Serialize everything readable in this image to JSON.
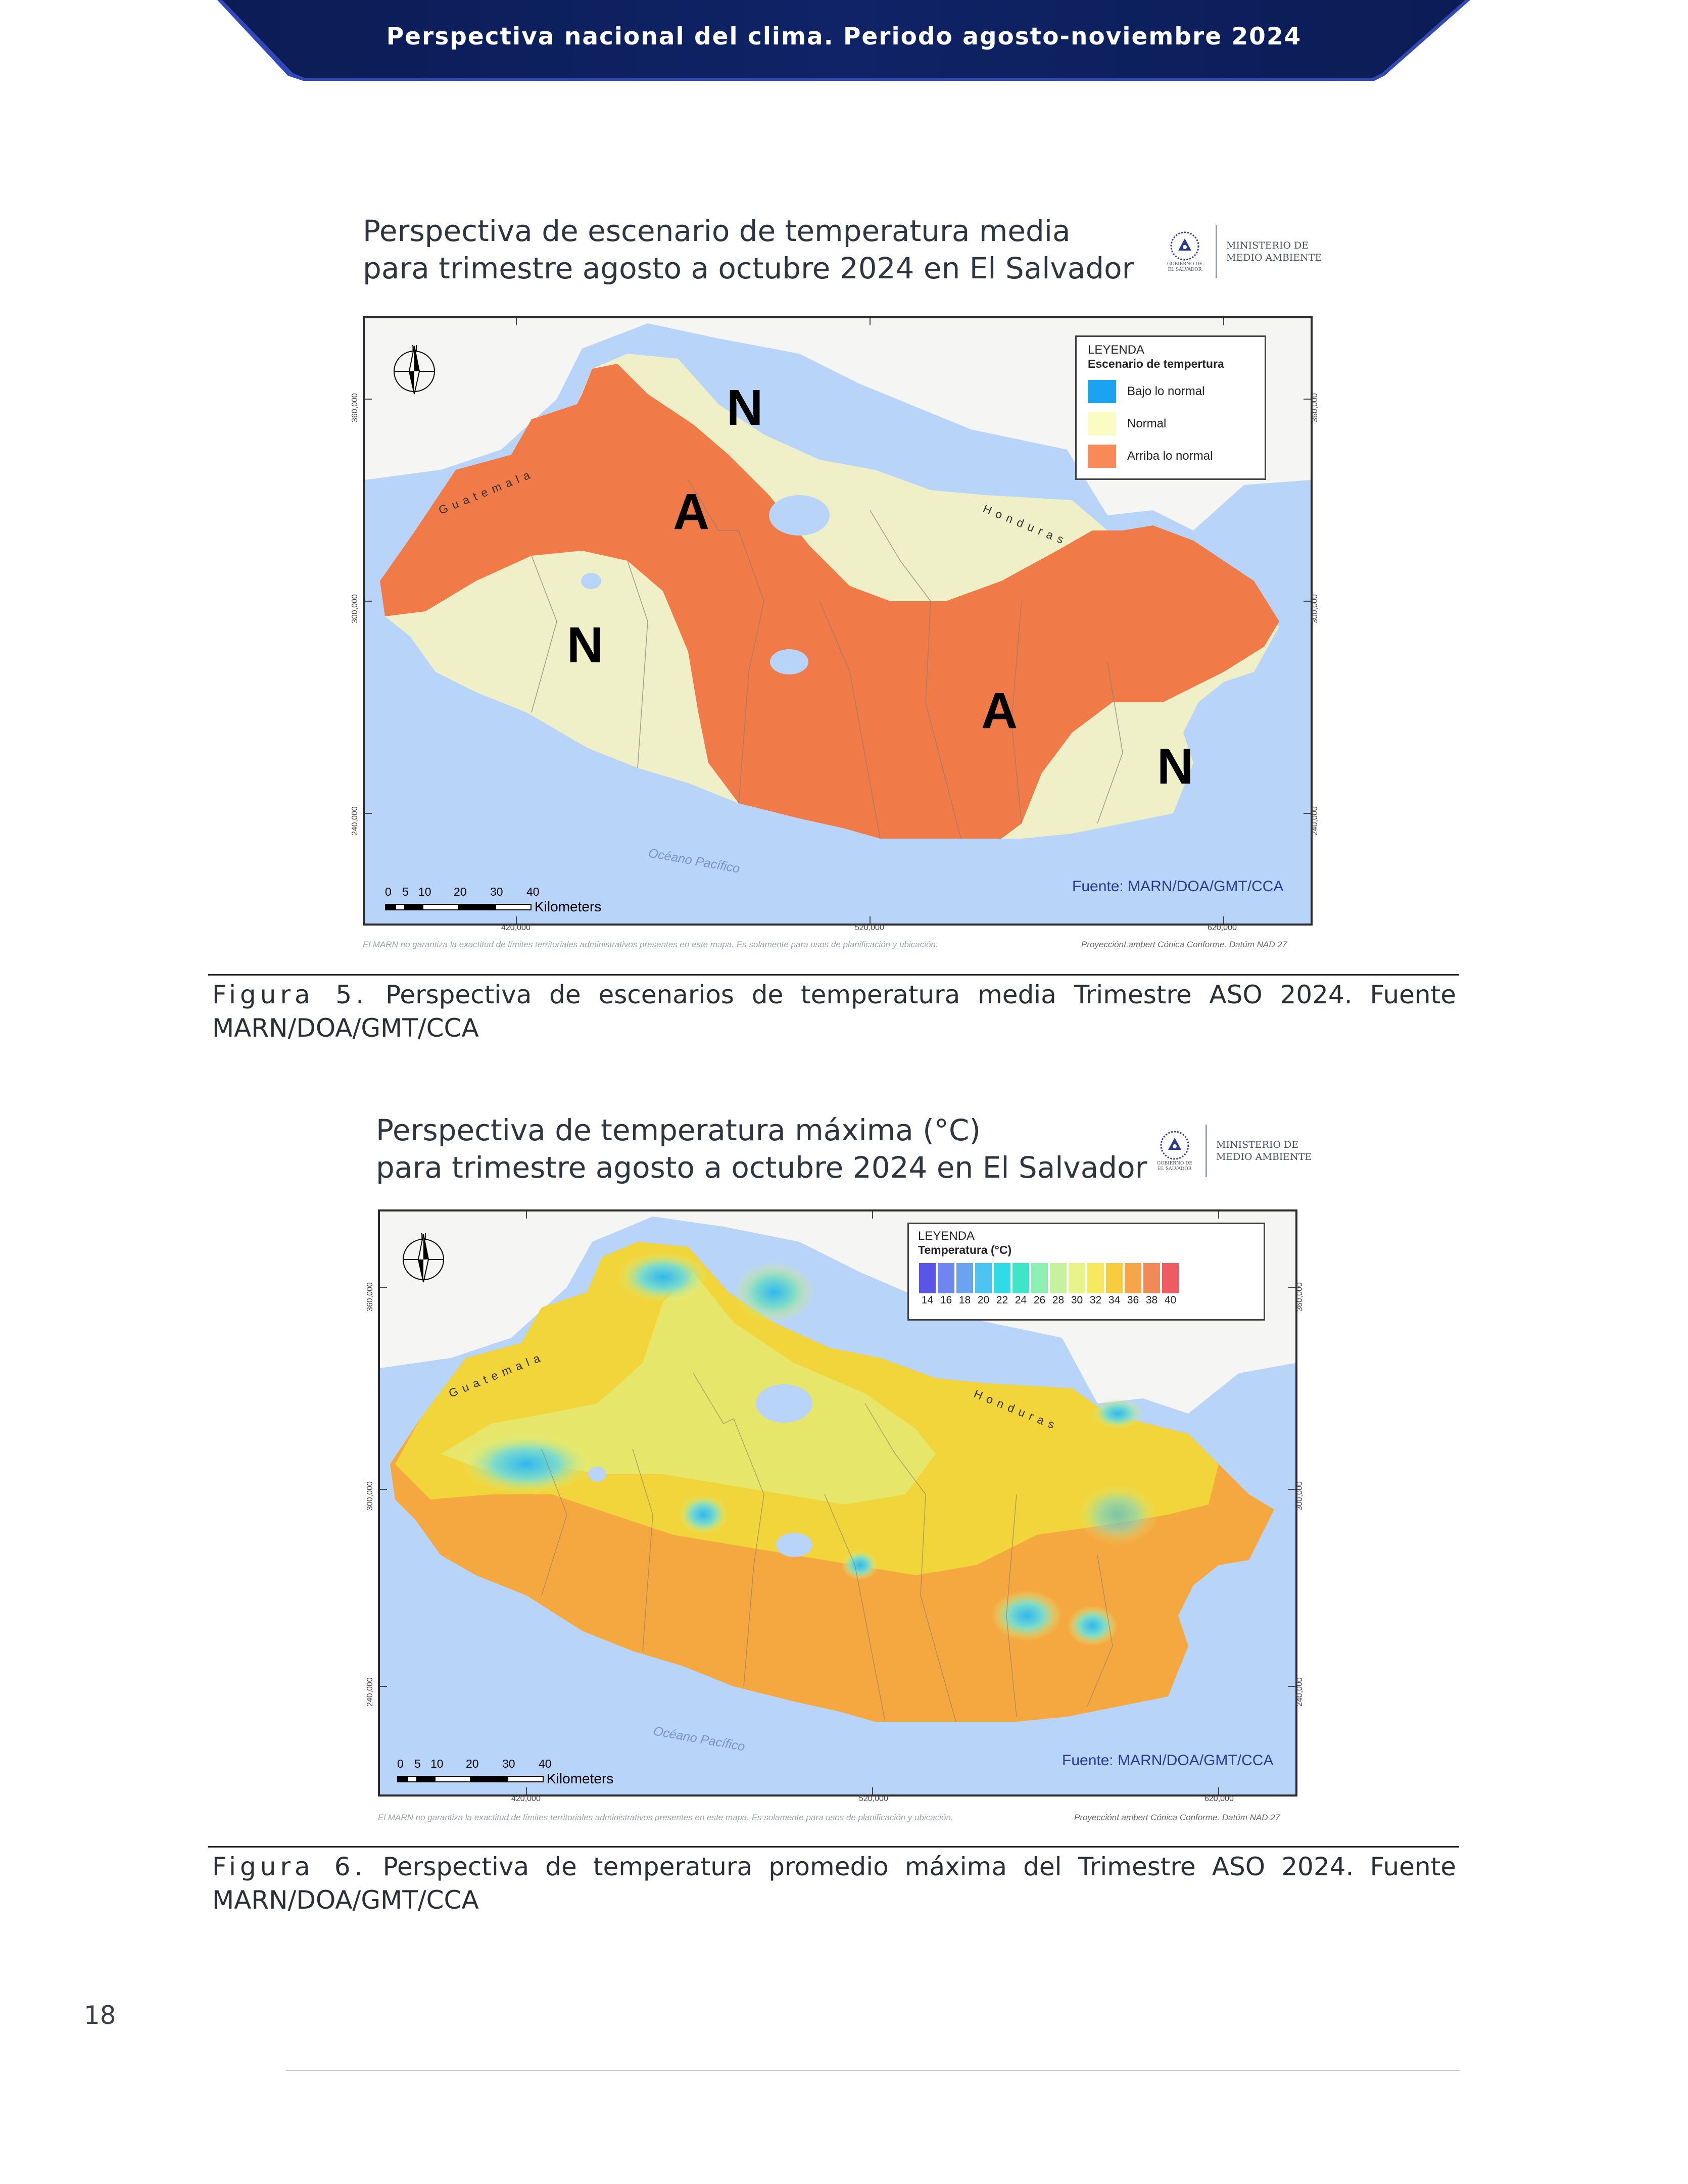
{
  "header": {
    "title": "Perspectiva nacional del clima. Periodo agosto-noviembre 2024",
    "colors": {
      "banner": "#0d1f5c",
      "accent": "#3148b8"
    }
  },
  "ministry_logo": {
    "name_line1": "MINISTERIO DE",
    "name_line2": "MEDIO AMBIENTE",
    "seal_line1": "GOBIERNO DE",
    "seal_line2": "EL SALVADOR"
  },
  "figure5": {
    "map_title_line1": "Perspectiva de escenario de temperatura media",
    "map_title_line2": "para trimestre agosto a octubre 2024 en El Salvador",
    "legend": {
      "title": "LEYENDA",
      "subtitle": "Escenario de tempertura",
      "items": [
        {
          "label": "Bajo lo normal",
          "color": "#1aa3f0"
        },
        {
          "label": "Normal",
          "color": "#fbfbc4"
        },
        {
          "label": "Arriba lo normal",
          "color": "#f98a57"
        }
      ]
    },
    "zone_labels": [
      "N",
      "A",
      "N",
      "A",
      "N"
    ],
    "neighbors": {
      "guatemala": "Guatemala",
      "honduras": "Honduras"
    },
    "ocean": "Océano Pacífico",
    "source": "Fuente: MARN/DOA/GMT/CCA",
    "north_label": "N",
    "scale": {
      "ticks": [
        "0",
        "5",
        "10",
        "20",
        "30",
        "40"
      ],
      "unit": "Kilometers"
    },
    "x_coords": [
      "420,000",
      "520,000",
      "620,000"
    ],
    "y_coords": [
      "360,000",
      "300,000",
      "240,000"
    ],
    "disclaimer": "El MARN no garantiza la exactitud de límites territoriales administrativos presentes en este mapa. Es solamente para usos de planificación y ubicación.",
    "projection": "ProyecciónLambert Cónica Conforme. Datúm NAD 27",
    "caption_label": "Figura 5.",
    "caption_text": "Perspectiva de escenarios de temperatura media Trimestre ASO 2024. Fuente MARN/DOA/GMT/CCA"
  },
  "figure6": {
    "map_title_line1": "Perspectiva de temperatura máxima (°C)",
    "map_title_line2": "para trimestre agosto a octubre 2024 en El Salvador",
    "legend": {
      "title": "LEYENDA",
      "subtitle": "Temperatura (°C)",
      "ramp_labels": [
        "14",
        "16",
        "18",
        "20",
        "22",
        "24",
        "26",
        "28",
        "30",
        "32",
        "34",
        "36",
        "38",
        "40"
      ],
      "ramp_colors": [
        "#5a55e8",
        "#6f86f0",
        "#6aa4f0",
        "#4cc3f0",
        "#2fdbe6",
        "#3ee6c7",
        "#8ef0b5",
        "#c6f2a0",
        "#e8f38c",
        "#f6e960",
        "#f7cc3f",
        "#f7a54a",
        "#f38858",
        "#ef5b63"
      ]
    },
    "neighbors": {
      "guatemala": "Guatemala",
      "honduras": "Honduras"
    },
    "ocean": "Océano Pacífico",
    "source": "Fuente: MARN/DOA/GMT/CCA",
    "north_label": "N",
    "scale": {
      "ticks": [
        "0",
        "5",
        "10",
        "20",
        "30",
        "40"
      ],
      "unit": "Kilometers"
    },
    "x_coords": [
      "420,000",
      "520,000",
      "620,000"
    ],
    "y_coords": [
      "360,000",
      "300,000",
      "240,000"
    ],
    "disclaimer": "El MARN no garantiza la exactitud de límites territoriales administrativos presentes en este mapa. Es solamente para usos de planificación y ubicación.",
    "projection": "ProyecciónLambert Cónica Conforme. Datúm NAD 27",
    "caption_label": "Figura 6.",
    "caption_text": "Perspectiva de temperatura promedio máxima del Trimestre ASO 2024. Fuente MARN/DOA/GMT/CCA"
  },
  "page_number": "18"
}
